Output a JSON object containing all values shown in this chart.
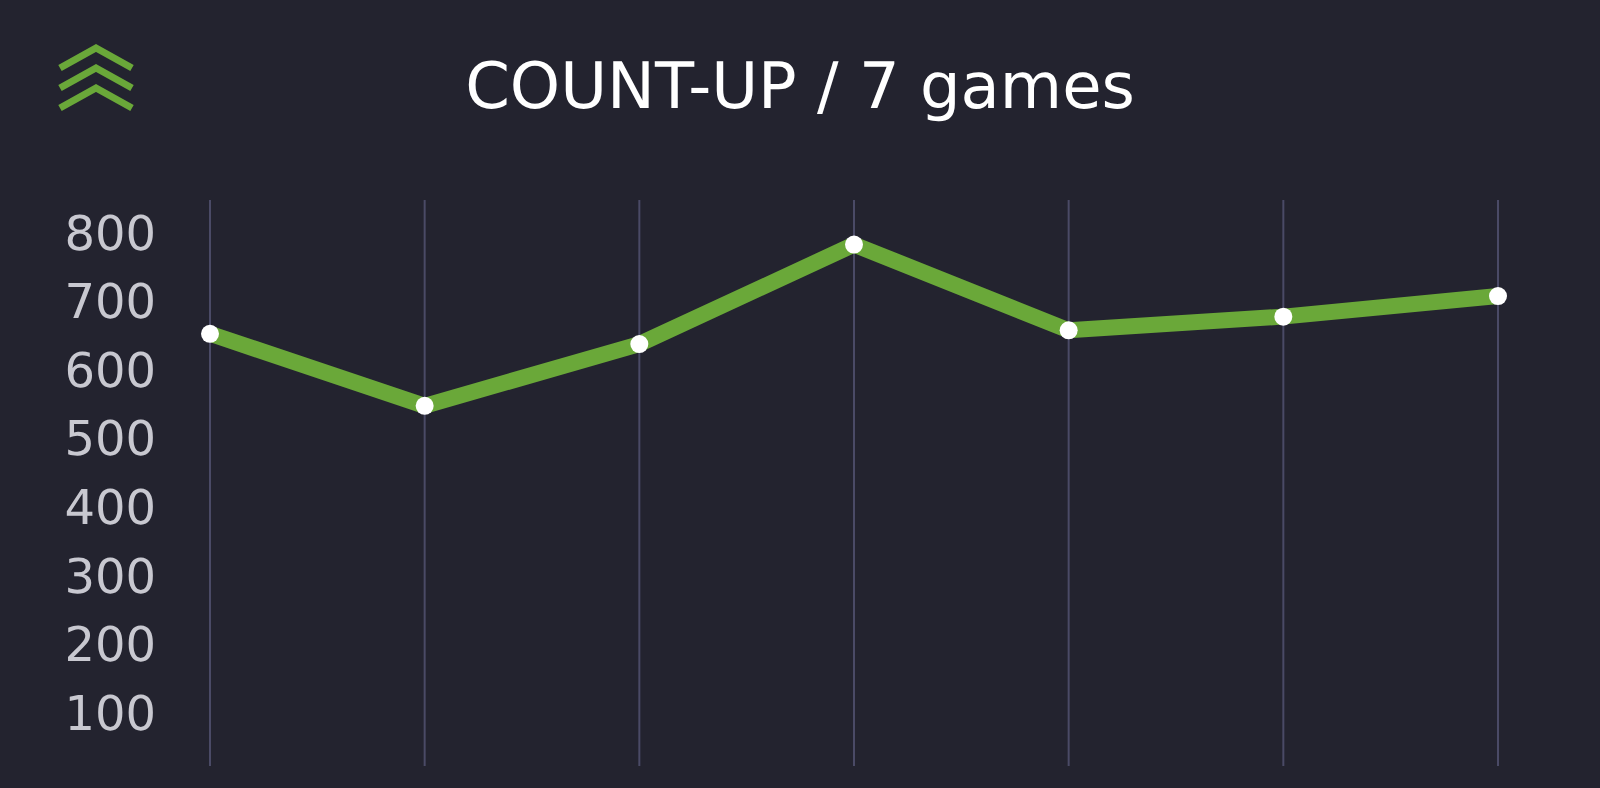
{
  "chart_data": {
    "type": "line",
    "title": "COUNT-UP / 7 games",
    "categories": [
      null,
      null,
      null,
      null,
      null,
      null,
      null
    ],
    "series": [
      {
        "color": "#6aa839",
        "values": [
          655,
          550,
          640,
          785,
          660,
          680,
          710
        ]
      }
    ],
    "ylim": [
      25,
      850
    ],
    "yticks": [
      100,
      200,
      300,
      400,
      500,
      600,
      700,
      800
    ],
    "grid": "x",
    "marker": "circle",
    "line_style": "solid"
  }
}
